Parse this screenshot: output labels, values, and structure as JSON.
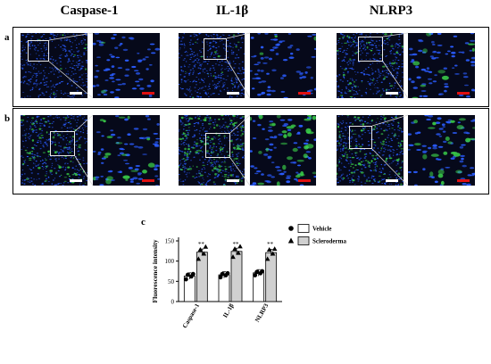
{
  "columns": [
    "Caspase-1",
    "IL-1β",
    "NLRP3"
  ],
  "panel_a_label": "a",
  "panel_b_label": "b",
  "panel_c_label": "c",
  "colors": {
    "background": "#06091a",
    "nuclei": "#2a5cff",
    "stain": "#3bd24a",
    "scale_white": "#ffffff",
    "scale_red": "#e01010",
    "inset_box": "#e8e8e8",
    "bar_vehicle": "#ffffff",
    "bar_scleroderma": "#d0d0d0"
  },
  "chart_data": {
    "type": "bar",
    "categories": [
      "Caspase-1",
      "IL-1β",
      "NLRP3"
    ],
    "ylabel": "Fluorescence intensity",
    "ylim": [
      0,
      150
    ],
    "yticks": [
      0,
      50,
      100,
      150
    ],
    "series": [
      {
        "name": "Vehicle",
        "marker": "circle",
        "values": [
          63,
          66,
          71
        ],
        "points": [
          [
            55,
            62,
            66,
            68
          ],
          [
            60,
            65,
            68,
            70
          ],
          [
            65,
            70,
            73,
            75
          ]
        ]
      },
      {
        "name": "Scleroderma",
        "marker": "triangle",
        "values": [
          122,
          124,
          121
        ],
        "points": [
          [
            105,
            118,
            128,
            135
          ],
          [
            110,
            120,
            130,
            136
          ],
          [
            105,
            118,
            128,
            130
          ]
        ]
      }
    ],
    "annotations": [
      "**",
      "**",
      "**"
    ],
    "legend_position": "top-right"
  }
}
